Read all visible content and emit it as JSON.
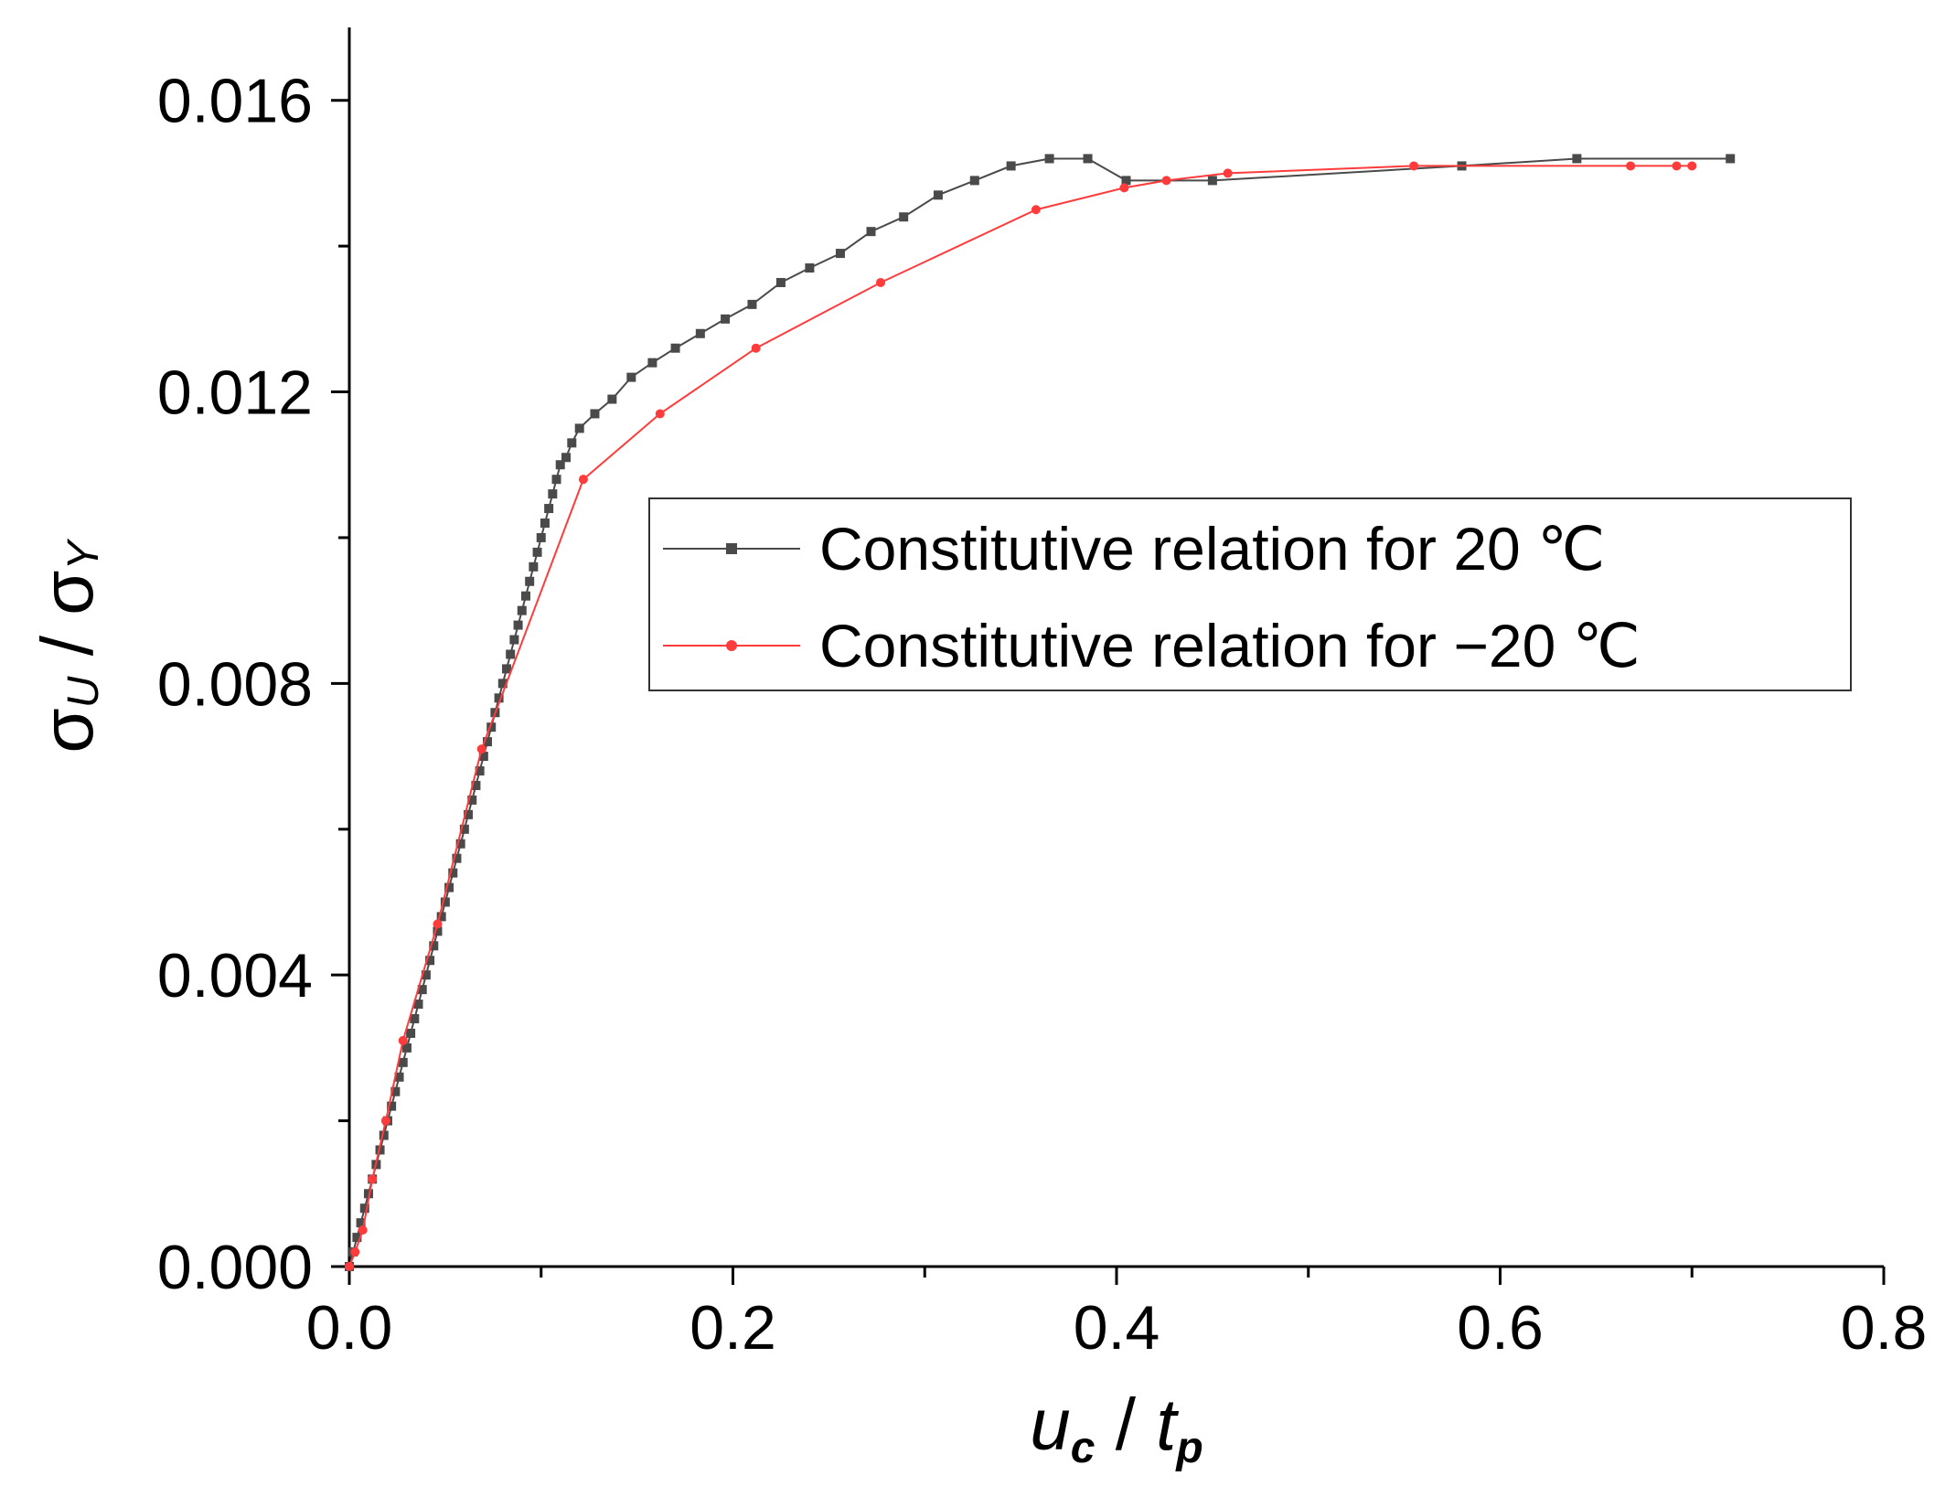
{
  "chart_data": {
    "type": "line",
    "xlabel_parts": {
      "var": "u",
      "var_sub": "c",
      "sep": " / ",
      "den": "t",
      "den_sub": "p"
    },
    "ylabel_parts": {
      "var": "σ",
      "var_sub": "U",
      "sep": " / ",
      "den": "σ",
      "den_sub": "Y"
    },
    "xlim": [
      0,
      0.8
    ],
    "ylim": [
      0,
      0.017
    ],
    "x_ticks": [
      {
        "value": 0.0,
        "label": "0.0"
      },
      {
        "value": 0.2,
        "label": "0.2"
      },
      {
        "value": 0.4,
        "label": "0.4"
      },
      {
        "value": 0.6,
        "label": "0.6"
      },
      {
        "value": 0.8,
        "label": "0.8"
      }
    ],
    "y_ticks": [
      {
        "value": 0.0,
        "label": "0.000"
      },
      {
        "value": 0.004,
        "label": "0.004"
      },
      {
        "value": 0.008,
        "label": "0.008"
      },
      {
        "value": 0.012,
        "label": "0.012"
      },
      {
        "value": 0.016,
        "label": "0.016"
      }
    ],
    "x_minor_ticks": [
      0.1,
      0.3,
      0.5,
      0.7
    ],
    "y_minor_ticks": [
      0.002,
      0.006,
      0.01,
      0.014
    ],
    "grid": false,
    "legend_position": "center-right",
    "series": [
      {
        "name": "Constitutive relation for 20 ℃",
        "color": "#4a4a4a",
        "marker": "square",
        "x": [
          0,
          0.002,
          0.004,
          0.006,
          0.008,
          0.01,
          0.012,
          0.014,
          0.016,
          0.018,
          0.02,
          0.022,
          0.024,
          0.026,
          0.028,
          0.03,
          0.032,
          0.034,
          0.036,
          0.038,
          0.04,
          0.042,
          0.044,
          0.046,
          0.048,
          0.05,
          0.052,
          0.054,
          0.056,
          0.058,
          0.06,
          0.062,
          0.064,
          0.066,
          0.068,
          0.07,
          0.072,
          0.074,
          0.076,
          0.078,
          0.08,
          0.082,
          0.084,
          0.086,
          0.088,
          0.09,
          0.092,
          0.094,
          0.096,
          0.098,
          0.1,
          0.102,
          0.104,
          0.106,
          0.108,
          0.11,
          0.113,
          0.116,
          0.12,
          0.128,
          0.137,
          0.147,
          0.158,
          0.17,
          0.183,
          0.196,
          0.21,
          0.225,
          0.24,
          0.256,
          0.272,
          0.289,
          0.307,
          0.326,
          0.345,
          0.365,
          0.385,
          0.405,
          0.45,
          0.58,
          0.64,
          0.72
        ],
        "y": [
          0,
          0.0002,
          0.0004,
          0.0006,
          0.0008,
          0.001,
          0.0012,
          0.0014,
          0.0016,
          0.0018,
          0.002,
          0.0022,
          0.0024,
          0.0026,
          0.0028,
          0.003,
          0.0032,
          0.0034,
          0.0036,
          0.0038,
          0.004,
          0.0042,
          0.0044,
          0.0046,
          0.0048,
          0.005,
          0.0052,
          0.0054,
          0.0056,
          0.0058,
          0.006,
          0.0062,
          0.0064,
          0.0066,
          0.0068,
          0.007,
          0.0072,
          0.0074,
          0.0076,
          0.0078,
          0.008,
          0.0082,
          0.0084,
          0.0086,
          0.0088,
          0.009,
          0.0092,
          0.0094,
          0.0096,
          0.0098,
          0.01,
          0.0102,
          0.0104,
          0.0106,
          0.0108,
          0.011,
          0.0111,
          0.0113,
          0.0115,
          0.0117,
          0.0119,
          0.0122,
          0.0124,
          0.0126,
          0.0128,
          0.013,
          0.0132,
          0.0135,
          0.0137,
          0.0139,
          0.0142,
          0.0144,
          0.0147,
          0.0149,
          0.0151,
          0.0152,
          0.0152,
          0.0149,
          0.0149,
          0.0151,
          0.0152,
          0.0152
        ]
      },
      {
        "name": "Constitutive relation for −20 ℃",
        "color": "#ff3b3b",
        "marker": "circle",
        "x": [
          0,
          0.003,
          0.007,
          0.012,
          0.019,
          0.028,
          0.046,
          0.069,
          0.122,
          0.162,
          0.212,
          0.277,
          0.358,
          0.404,
          0.426,
          0.458,
          0.555,
          0.668,
          0.692,
          0.7
        ],
        "y": [
          0,
          0.0002,
          0.0005,
          0.0012,
          0.002,
          0.0031,
          0.0047,
          0.0071,
          0.0108,
          0.0117,
          0.0126,
          0.0135,
          0.0145,
          0.0148,
          0.0149,
          0.015,
          0.0151,
          0.0151,
          0.0151,
          0.0151
        ]
      }
    ]
  }
}
